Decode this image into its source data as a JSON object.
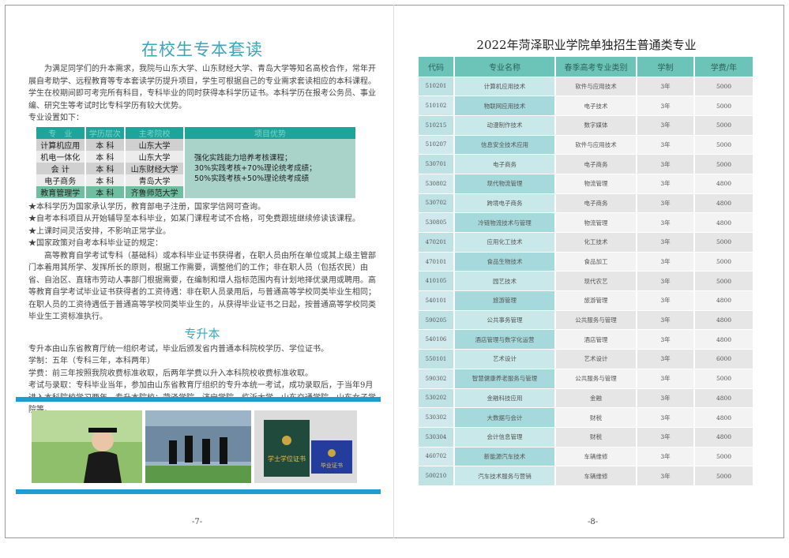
{
  "left_page": {
    "title": "在校生专本套读",
    "intro": "为满足同学们的升本需求，我院与山东大学、山东财经大学、青岛大学等知名高校合作，常年开展自考助学、远程教育等专本套读学历提升项目，学生可根据自己的专业需求套读相应的本科课程。学生在校期间即可考完所有科目，专科毕业的同时获得本科学历证书。本科学历在报考公务员、事业编、研究生等考试时比专科学历有较大优势。",
    "majors_label": "专业设置如下：",
    "table": {
      "headers": [
        "专　业",
        "学历层次",
        "主考院校",
        "项目优势"
      ],
      "rows": [
        [
          "计算机应用",
          "本 科",
          "山东大学"
        ],
        [
          "机电一体化",
          "本 科",
          "山东大学"
        ],
        [
          "会 计",
          "本 科",
          "山东财经大学"
        ],
        [
          "电子商务",
          "本 科",
          "青岛大学"
        ],
        [
          "教育管理学",
          "本 科",
          "齐鲁师范大学"
        ]
      ],
      "advantage": [
        "强化实践能力培养考核课程；",
        "30%实践考核+70%理论统考成绩；",
        "50%实践考核+50%理论统考成绩"
      ]
    },
    "bullets": [
      "★本科学历为国家承认学历，教育部电子注册，国家学信网可查询。",
      "★自考本科项目从开始辅导至本科毕业，如某门课程考试不合格，可免费跟班继续修读该课程。",
      "★上课时间灵活安排，不影响正常学业。",
      "★国家政策对自考本科毕业证的规定："
    ],
    "policy": "高等教育自学考试专科（基础科）或本科毕业证书获得者，在职人员由所在单位或其上级主管部门本着用其所学、发挥所长的原则，根据工作需要，调整他们的工作；非在职人员（包括农民）由省、自治区、直辖市劳动人事部门根据需要，在编制和增人指标范围内有计划地择优录用或聘用。高等教育自学考试毕业证书获得者的工资待遇：非在职人员录用后，与普通高等学校同类毕业生相同；在职人员的工资待遇低于普通高等学校同类毕业生的，从获得毕业证书之日起，按普通高等学校同类毕业生工资标准执行。",
    "zsb_title": "专升本",
    "zsb_lines": [
      "专升本由山东省教育厅统一组织考试，毕业后颁发省内普通本科院校学历、学位证书。",
      "学制：五年（专科三年，本科两年）",
      "学费：前三年按照我院收费标准收取，后两年学费以升入本科院校收费标准收取。",
      "考试与录取：专科毕业当年，参加由山东省教育厅组织的专升本统一考试，成功录取后，于当年9月进入本科院校学习两年。专升本院校：菏泽学院、济宁学院、临沂大学、山东交通学院、山东女子学院等。"
    ],
    "certificate_text": [
      "学士学位证书",
      "毕业证书"
    ],
    "page_number": "-7-"
  },
  "right_page": {
    "title": "2022年菏泽职业学院单独招生普通类专业",
    "headers": [
      "代码",
      "专业名称",
      "春季高考专业类别",
      "学制",
      "学费/年"
    ],
    "rows": [
      [
        "510201",
        "计算机应用技术",
        "软件与应用技术",
        "3年",
        "5000"
      ],
      [
        "510102",
        "物联网应用技术",
        "电子技术",
        "3年",
        "5000"
      ],
      [
        "510215",
        "动漫制作技术",
        "数字媒体",
        "3年",
        "5000"
      ],
      [
        "510207",
        "信息安全技术应用",
        "软件与应用技术",
        "3年",
        "5000"
      ],
      [
        "530701",
        "电子商务",
        "电子商务",
        "3年",
        "5000"
      ],
      [
        "530802",
        "现代物流管理",
        "物流管理",
        "3年",
        "4800"
      ],
      [
        "530702",
        "跨境电子商务",
        "电子商务",
        "3年",
        "4800"
      ],
      [
        "530805",
        "冷链物流技术与管理",
        "物流管理",
        "3年",
        "4800"
      ],
      [
        "470201",
        "应用化工技术",
        "化工技术",
        "3年",
        "5000"
      ],
      [
        "470101",
        "食品生物技术",
        "食品加工",
        "3年",
        "5000"
      ],
      [
        "410105",
        "园艺技术",
        "现代农艺",
        "3年",
        "5000"
      ],
      [
        "540101",
        "旅游管理",
        "旅游管理",
        "3年",
        "4800"
      ],
      [
        "590205",
        "公共事务管理",
        "公共服务与管理",
        "3年",
        "4800"
      ],
      [
        "540106",
        "酒店管理与数字化运营",
        "酒店管理",
        "3年",
        "4800"
      ],
      [
        "550101",
        "艺术设计",
        "艺术设计",
        "3年",
        "6000"
      ],
      [
        "590302",
        "智慧健康养老服务与管理",
        "公共服务与管理",
        "3年",
        "5000"
      ],
      [
        "530202",
        "金融科技应用",
        "金融",
        "3年",
        "4800"
      ],
      [
        "530302",
        "大数据与会计",
        "财税",
        "3年",
        "4800"
      ],
      [
        "530304",
        "会计信息管理",
        "财税",
        "3年",
        "4800"
      ],
      [
        "460702",
        "新能源汽车技术",
        "车辆维修",
        "3年",
        "5000"
      ],
      [
        "500210",
        "汽车技术服务与营销",
        "车辆维修",
        "3年",
        "5000"
      ]
    ],
    "page_number": "-8-"
  },
  "colors": {
    "title": "#3aa6b9",
    "header": "#6cc4b8",
    "bar": "#1e9ed0"
  }
}
